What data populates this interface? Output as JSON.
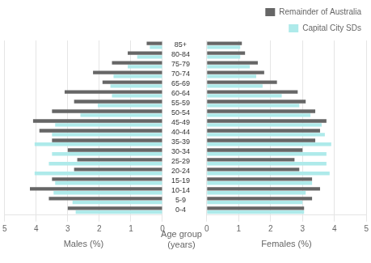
{
  "chart_data": [
    {
      "type": "bar",
      "orientation": "horizontal",
      "xlabel": "Males (%)",
      "ylabel": "Age group\n(years)",
      "categories": [
        "0-4",
        "5-9",
        "10-14",
        "15-19",
        "20-24",
        "25-29",
        "30-34",
        "35-39",
        "40-44",
        "45-49",
        "50-54",
        "55-59",
        "60-64",
        "65-69",
        "70-74",
        "75-79",
        "80-84",
        "85+"
      ],
      "series": [
        {
          "name": "Remainder of Australia",
          "color": "#666666",
          "values": [
            3.0,
            3.6,
            4.2,
            3.5,
            2.8,
            2.7,
            3.0,
            3.5,
            3.9,
            4.1,
            3.5,
            2.8,
            3.1,
            1.9,
            2.2,
            1.6,
            1.1,
            0.5
          ]
        },
        {
          "name": "Capital City SDs",
          "color": "#aeeaea",
          "values": [
            2.75,
            2.85,
            3.45,
            3.4,
            4.05,
            3.6,
            3.5,
            4.05,
            3.5,
            3.4,
            2.6,
            2.05,
            1.6,
            1.65,
            1.55,
            1.1,
            0.8,
            0.4
          ]
        }
      ],
      "xlim": [
        5,
        0
      ],
      "xticks": [
        5,
        4,
        3,
        2,
        1,
        0
      ],
      "grid": true
    },
    {
      "type": "bar",
      "orientation": "horizontal",
      "xlabel": "Females (%)",
      "categories": [
        "0-4",
        "5-9",
        "10-14",
        "15-19",
        "20-24",
        "25-29",
        "30-34",
        "35-39",
        "40-44",
        "45-49",
        "50-54",
        "55-59",
        "60-64",
        "65-69",
        "70-74",
        "75-79",
        "80-84",
        "85+"
      ],
      "series": [
        {
          "name": "Remainder of Australia",
          "color": "#666666",
          "values": [
            3.05,
            3.3,
            3.55,
            3.3,
            2.9,
            2.75,
            3.0,
            3.4,
            3.55,
            3.75,
            3.4,
            3.1,
            2.85,
            2.2,
            1.8,
            1.6,
            1.2,
            1.1
          ]
        },
        {
          "name": "Capital City SDs",
          "color": "#aeeaea",
          "values": [
            3.05,
            3.0,
            3.1,
            3.3,
            3.85,
            3.75,
            3.75,
            3.9,
            3.7,
            3.6,
            3.25,
            2.9,
            2.35,
            1.75,
            1.55,
            1.35,
            1.05,
            1.05
          ]
        }
      ],
      "xlim": [
        0,
        5
      ],
      "xticks": [
        0,
        1,
        2,
        3,
        4,
        5
      ],
      "grid": true,
      "legend": "upper right",
      "tick_labels": "x"
    }
  ]
}
